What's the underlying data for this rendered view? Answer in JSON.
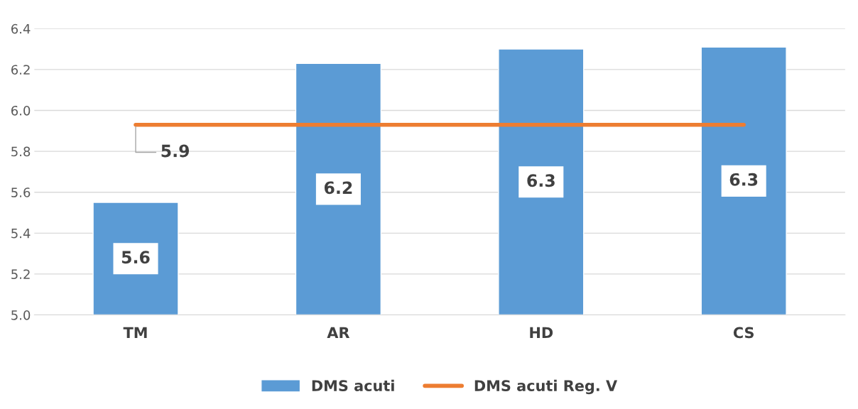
{
  "chart_data": {
    "type": "bar",
    "categories": [
      "TM",
      "AR",
      "HD",
      "CS"
    ],
    "series": [
      {
        "name": "DMS acuti",
        "color": "#5b9bd5",
        "values": [
          5.55,
          6.23,
          6.3,
          6.31
        ],
        "value_labels": [
          "5.6",
          "6.2",
          "6.3",
          "6.3"
        ]
      },
      {
        "name": "DMS acuti Reg. V",
        "type": "line",
        "color": "#ed7d31",
        "values": [
          5.93,
          5.93,
          5.93,
          5.93
        ],
        "value_labels": [
          "5.9",
          null,
          null,
          null
        ]
      }
    ],
    "ylim": [
      5.0,
      6.4
    ],
    "yticks": [
      {
        "value": 5.0,
        "label": "5.0"
      },
      {
        "value": 5.2,
        "label": "5.2"
      },
      {
        "value": 5.4,
        "label": "5.4"
      },
      {
        "value": 5.6,
        "label": "5.6"
      },
      {
        "value": 5.8,
        "label": "5.8"
      },
      {
        "value": 6.0,
        "label": "6.0"
      },
      {
        "value": 6.2,
        "label": "6.2"
      },
      {
        "value": 6.4,
        "label": "6.4"
      }
    ],
    "grid": "y",
    "legend": "bottom",
    "marker": "none",
    "line_style": "solid"
  }
}
